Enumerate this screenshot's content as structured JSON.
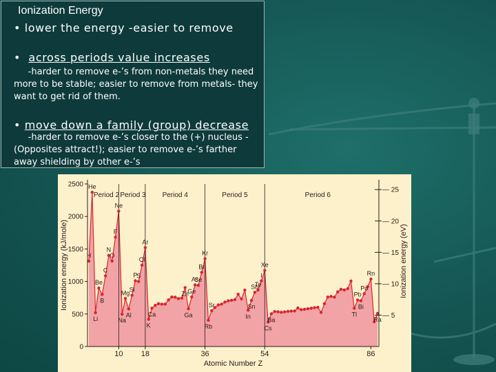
{
  "colors": {
    "background": "#145552",
    "text_box": "#0e3a3b",
    "chart_bg": "#fdf1cc",
    "chart_fill": "#f2a3a6",
    "chart_line": "#d9252c",
    "marker": "#d9252c"
  },
  "slide": {
    "title": "Ionization Energy",
    "bullet1": "• lower the energy -easier to remove",
    "bullet2_prefix": "•  ",
    "bullet2": "across periods value increases",
    "sub1": "     -harder to remove e-’s from non-metals they need more to be stable; easier to remove from metals- they want to get rid of them.",
    "bullet3_prefix": "• ",
    "bullet3": "move down a family (group) decrease",
    "sub2": "     -harder to remove e-’s closer to the (+) nucleus -(Opposites attract!); easier to remove e-’s farther away shielding by other e-’s"
  },
  "decor": {
    "icon": "balance-scale-icon"
  },
  "chart_data": {
    "type": "area",
    "xlabel": "Atomic Number Z",
    "ylabel": "Ionization energy (kJ/mole)",
    "ylabel_right": "Ionization energy (eV)",
    "xlim": [
      1,
      88
    ],
    "ylim": [
      0,
      2500
    ],
    "ylim_right": [
      0,
      25.9
    ],
    "x_ticks": [
      "10",
      "18",
      "36",
      "54",
      "86"
    ],
    "y_ticks": [
      "0",
      "500",
      "1000",
      "1500",
      "2000",
      "2500"
    ],
    "y_ticks_right": [
      "5",
      "10",
      "15",
      "20",
      "25"
    ],
    "periods": [
      "Period 2",
      "Period 3",
      "Period 4",
      "Period 5",
      "Period 6"
    ],
    "period_boundaries": [
      10,
      18,
      36,
      54
    ],
    "x": [
      1,
      2,
      3,
      4,
      5,
      6,
      7,
      8,
      9,
      10,
      11,
      12,
      13,
      14,
      15,
      16,
      17,
      18,
      19,
      20,
      21,
      22,
      23,
      24,
      25,
      26,
      27,
      28,
      29,
      30,
      31,
      32,
      33,
      34,
      35,
      36,
      37,
      38,
      39,
      40,
      41,
      42,
      43,
      44,
      45,
      46,
      47,
      48,
      49,
      50,
      51,
      52,
      53,
      54,
      55,
      56,
      57,
      58,
      59,
      60,
      61,
      62,
      63,
      64,
      65,
      66,
      67,
      68,
      69,
      70,
      71,
      72,
      73,
      74,
      75,
      76,
      77,
      78,
      79,
      80,
      81,
      82,
      83,
      84,
      85,
      86,
      87,
      88
    ],
    "values": [
      1312,
      2372,
      520,
      899,
      801,
      1086,
      1402,
      1314,
      1681,
      2081,
      496,
      738,
      578,
      787,
      1012,
      1000,
      1251,
      1521,
      419,
      590,
      633,
      659,
      651,
      653,
      717,
      762,
      760,
      737,
      745,
      906,
      579,
      762,
      947,
      941,
      1140,
      1351,
      403,
      550,
      600,
      640,
      652,
      684,
      702,
      710,
      720,
      804,
      731,
      868,
      558,
      709,
      834,
      869,
      1008,
      1170,
      376,
      503,
      538,
      534,
      527,
      533,
      540,
      545,
      547,
      593,
      566,
      573,
      581,
      589,
      597,
      603,
      524,
      659,
      761,
      770,
      760,
      840,
      880,
      870,
      890,
      1007,
      589,
      716,
      703,
      812,
      920,
      1037,
      380,
      509
    ],
    "element_labels": [
      {
        "z": 1,
        "symbol": "H"
      },
      {
        "z": 2,
        "symbol": "He"
      },
      {
        "z": 3,
        "symbol": "Li"
      },
      {
        "z": 4,
        "symbol": "Be"
      },
      {
        "z": 5,
        "symbol": "B"
      },
      {
        "z": 6,
        "symbol": "C"
      },
      {
        "z": 7,
        "symbol": "N"
      },
      {
        "z": 8,
        "symbol": "O"
      },
      {
        "z": 9,
        "symbol": "F"
      },
      {
        "z": 10,
        "symbol": "Ne"
      },
      {
        "z": 11,
        "symbol": "Na"
      },
      {
        "z": 12,
        "symbol": "Mg"
      },
      {
        "z": 13,
        "symbol": "Al"
      },
      {
        "z": 14,
        "symbol": "Si"
      },
      {
        "z": 15,
        "symbol": "P"
      },
      {
        "z": 16,
        "symbol": "S"
      },
      {
        "z": 17,
        "symbol": "Cl"
      },
      {
        "z": 18,
        "symbol": "Ar"
      },
      {
        "z": 19,
        "symbol": "K"
      },
      {
        "z": 20,
        "symbol": "Ca"
      },
      {
        "z": 30,
        "symbol": "Zn"
      },
      {
        "z": 31,
        "symbol": "Ga"
      },
      {
        "z": 32,
        "symbol": "Ge"
      },
      {
        "z": 33,
        "symbol": "As"
      },
      {
        "z": 34,
        "symbol": "Se"
      },
      {
        "z": 35,
        "symbol": "Br"
      },
      {
        "z": 36,
        "symbol": "Kr"
      },
      {
        "z": 37,
        "symbol": "Rb"
      },
      {
        "z": 38,
        "symbol": "Sr"
      },
      {
        "z": 49,
        "symbol": "In"
      },
      {
        "z": 50,
        "symbol": "Sn"
      },
      {
        "z": 51,
        "symbol": "Sb"
      },
      {
        "z": 52,
        "symbol": "Te"
      },
      {
        "z": 53,
        "symbol": "I"
      },
      {
        "z": 54,
        "symbol": "Xe"
      },
      {
        "z": 55,
        "symbol": "Cs"
      },
      {
        "z": 56,
        "symbol": "Ba"
      },
      {
        "z": 81,
        "symbol": "Tl"
      },
      {
        "z": 82,
        "symbol": "Pb"
      },
      {
        "z": 83,
        "symbol": "Bi"
      },
      {
        "z": 84,
        "symbol": "Po"
      },
      {
        "z": 86,
        "symbol": "Rn"
      },
      {
        "z": 88,
        "symbol": "Ra"
      }
    ]
  }
}
